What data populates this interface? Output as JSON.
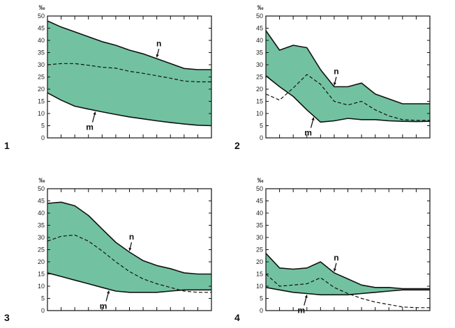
{
  "colors": {
    "band_fill": "#72c2a1",
    "outline": "#111111",
    "background": "#ffffff"
  },
  "chart_data": [
    {
      "type": "area",
      "panel_label": "1",
      "yunit": "‰",
      "ylim": [
        0,
        50
      ],
      "yticks": [
        "0",
        "5",
        "10",
        "15",
        "20",
        "25",
        "30",
        "35",
        "40",
        "45",
        "50"
      ],
      "xticks": 13,
      "x": [
        0,
        1,
        2,
        3,
        4,
        5,
        6,
        7,
        8,
        9,
        10,
        11,
        12
      ],
      "series": [
        {
          "name": "n",
          "values": [
            48,
            45.5,
            43.5,
            41.5,
            39.5,
            38,
            36,
            34.5,
            32.5,
            30.5,
            28.5,
            28,
            28
          ]
        },
        {
          "name": "m",
          "values": [
            18.5,
            15.5,
            13,
            11.8,
            10.7,
            9.6,
            8.6,
            7.8,
            7,
            6.3,
            5.7,
            5.2,
            5
          ]
        },
        {
          "name": "dashed",
          "values": [
            30,
            30.5,
            30.5,
            29.8,
            29,
            28.6,
            27.3,
            26.5,
            25.5,
            24.5,
            23.3,
            23,
            23
          ]
        }
      ],
      "annotations": [
        {
          "text": "n",
          "series": "n",
          "x": 8
        },
        {
          "text": "m",
          "series": "m",
          "x": 3.5
        }
      ]
    },
    {
      "type": "area",
      "panel_label": "2",
      "yunit": "‰",
      "ylim": [
        0,
        50
      ],
      "yticks": [
        "0",
        "5",
        "10",
        "15",
        "20",
        "25",
        "30",
        "35",
        "40",
        "45",
        "50"
      ],
      "xticks": 13,
      "x": [
        0,
        1,
        2,
        3,
        4,
        5,
        6,
        7,
        8,
        9,
        10,
        11,
        12
      ],
      "series": [
        {
          "name": "n",
          "values": [
            44,
            36,
            38,
            37,
            28,
            21,
            21,
            22.5,
            18,
            16,
            14,
            14,
            14
          ]
        },
        {
          "name": "m",
          "values": [
            25.5,
            21,
            17,
            11.5,
            6.5,
            7,
            8,
            7.5,
            7.5,
            7,
            6.8,
            6.7,
            6.8
          ]
        },
        {
          "name": "dashed",
          "values": [
            18,
            15.5,
            20.5,
            26,
            22,
            15,
            13.5,
            15,
            11.5,
            9,
            7.5,
            7.2,
            7.2
          ]
        }
      ],
      "annotations": [
        {
          "text": "n",
          "series": "n",
          "x": 5
        },
        {
          "text": "m",
          "series": "m",
          "x": 3.5
        }
      ]
    },
    {
      "type": "area",
      "panel_label": "3",
      "yunit": "‰",
      "ylim": [
        0,
        50
      ],
      "yticks": [
        "0",
        "5",
        "10",
        "15",
        "20",
        "25",
        "30",
        "35",
        "40",
        "45",
        "50"
      ],
      "xticks": 13,
      "x": [
        0,
        1,
        2,
        3,
        4,
        5,
        6,
        7,
        8,
        9,
        10,
        11,
        12
      ],
      "series": [
        {
          "name": "n",
          "values": [
            44,
            44.5,
            43,
            39,
            33.5,
            28,
            24,
            20.5,
            18.5,
            17.2,
            15.5,
            15,
            15
          ]
        },
        {
          "name": "m",
          "values": [
            15.5,
            14,
            12.5,
            11,
            9.5,
            8,
            7.5,
            7.5,
            7.5,
            8,
            8.5,
            8.5,
            8.5
          ]
        },
        {
          "name": "dashed",
          "values": [
            28.5,
            30.5,
            31,
            28.5,
            24.5,
            20,
            16,
            13,
            11,
            9.5,
            8,
            7.5,
            7.5
          ]
        }
      ],
      "annotations": [
        {
          "text": "n",
          "series": "n",
          "x": 6
        },
        {
          "text": "m",
          "series": "m",
          "x": 4.5
        }
      ]
    },
    {
      "type": "area",
      "panel_label": "4",
      "yunit": "‰",
      "ylim": [
        0,
        50
      ],
      "yticks": [
        "0",
        "5",
        "10",
        "15",
        "20",
        "25",
        "30",
        "35",
        "40",
        "45",
        "50"
      ],
      "xticks": 13,
      "x": [
        0,
        1,
        2,
        3,
        4,
        5,
        6,
        7,
        8,
        9,
        10,
        11,
        12
      ],
      "series": [
        {
          "name": "n",
          "values": [
            23.5,
            17.5,
            17,
            17.5,
            20,
            15.5,
            13,
            10.5,
            9.5,
            9.5,
            9,
            9,
            9
          ]
        },
        {
          "name": "m",
          "values": [
            9.5,
            8.5,
            7.5,
            7,
            6.5,
            6.5,
            6.5,
            7,
            7.5,
            8,
            8.5,
            8.5,
            8.5
          ]
        },
        {
          "name": "dashed",
          "values": [
            15,
            10,
            10.5,
            11,
            13.5,
            9.5,
            7,
            5,
            3.5,
            2.5,
            1.5,
            1.2,
            1.2
          ]
        }
      ],
      "annotations": [
        {
          "text": "n",
          "series": "n",
          "x": 5
        },
        {
          "text": "m",
          "series": "m",
          "x": 3
        }
      ]
    }
  ]
}
